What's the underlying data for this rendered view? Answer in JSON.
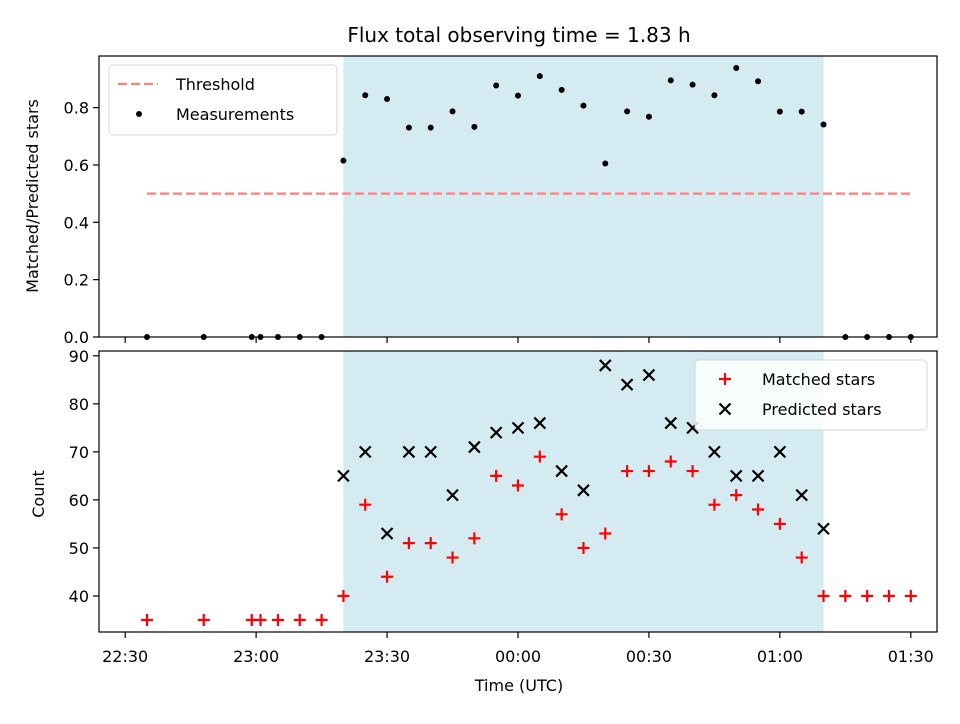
{
  "chart_data": {
    "title": "Flux total observing time = 1.83 h",
    "xlabel": "Time (UTC)",
    "x_tick_labels": [
      "22:30",
      "23:00",
      "23:30",
      "00:00",
      "00:30",
      "01:00",
      "01:30"
    ],
    "highlight": {
      "x_start": "23:20",
      "x_end": "01:10",
      "color": "#add8e6"
    },
    "panels": [
      {
        "name": "top",
        "type": "scatter",
        "ylabel": "Matched/Predicted stars",
        "ylim": [
          0,
          0.98
        ],
        "y_ticks": [
          "0.0",
          "0.2",
          "0.4",
          "0.6",
          "0.8"
        ],
        "legend_position": "upper-left",
        "threshold": {
          "name": "Threshold",
          "value": 0.5,
          "x_start": "22:35",
          "x_end": "01:30",
          "color": "#ff7f7f",
          "style": "dashed"
        },
        "series": [
          {
            "name": "Measurements",
            "color": "#000000",
            "marker": "dot",
            "x": [
              "22:35",
              "22:48",
              "22:59",
              "23:01",
              "23:05",
              "23:10",
              "23:15",
              "23:20",
              "23:25",
              "23:30",
              "23:35",
              "23:40",
              "23:45",
              "23:50",
              "23:55",
              "00:00",
              "00:05",
              "00:10",
              "00:15",
              "00:20",
              "00:25",
              "00:30",
              "00:35",
              "00:40",
              "00:45",
              "00:50",
              "00:55",
              "01:00",
              "01:05",
              "01:10",
              "01:15",
              "01:20",
              "01:25",
              "01:30"
            ],
            "y": [
              0,
              0,
              0,
              0,
              0,
              0,
              0,
              0.615,
              0.843,
              0.83,
              0.73,
              0.73,
              0.787,
              0.733,
              0.877,
              0.842,
              0.91,
              0.862,
              0.807,
              0.605,
              0.787,
              0.768,
              0.895,
              0.88,
              0.843,
              0.938,
              0.892,
              0.786,
              0.786,
              0.741,
              0,
              0,
              0,
              0
            ]
          }
        ]
      },
      {
        "name": "bottom",
        "type": "scatter",
        "ylabel": "Count",
        "ylim": [
          32.5,
          91
        ],
        "y_ticks": [
          "40",
          "50",
          "60",
          "70",
          "80",
          "90"
        ],
        "legend_position": "upper-right",
        "series": [
          {
            "name": "Matched stars",
            "color": "#ff0000",
            "marker": "plus",
            "x": [
              "22:35",
              "22:48",
              "22:59",
              "23:01",
              "23:05",
              "23:10",
              "23:15",
              "23:20",
              "23:25",
              "23:30",
              "23:35",
              "23:40",
              "23:45",
              "23:50",
              "23:55",
              "00:00",
              "00:05",
              "00:10",
              "00:15",
              "00:20",
              "00:25",
              "00:30",
              "00:35",
              "00:40",
              "00:45",
              "00:50",
              "00:55",
              "01:00",
              "01:05",
              "01:10",
              "01:15",
              "01:20",
              "01:25",
              "01:30"
            ],
            "y": [
              35,
              35,
              35,
              35,
              35,
              35,
              35,
              40,
              59,
              44,
              51,
              51,
              48,
              52,
              65,
              63,
              69,
              57,
              50,
              53,
              66,
              66,
              68,
              66,
              59,
              61,
              58,
              55,
              48,
              40,
              40,
              40,
              40,
              40
            ]
          },
          {
            "name": "Predicted stars",
            "color": "#000000",
            "marker": "x",
            "x": [
              "23:20",
              "23:25",
              "23:30",
              "23:35",
              "23:40",
              "23:45",
              "23:50",
              "23:55",
              "00:00",
              "00:05",
              "00:10",
              "00:15",
              "00:20",
              "00:25",
              "00:30",
              "00:35",
              "00:40",
              "00:45",
              "00:50",
              "00:55",
              "01:00",
              "01:05",
              "01:10"
            ],
            "y": [
              65,
              70,
              53,
              70,
              70,
              61,
              71,
              74,
              75,
              76,
              66,
              62,
              88,
              84,
              86,
              76,
              75,
              70,
              65,
              65,
              70,
              61,
              54
            ]
          }
        ]
      }
    ]
  }
}
